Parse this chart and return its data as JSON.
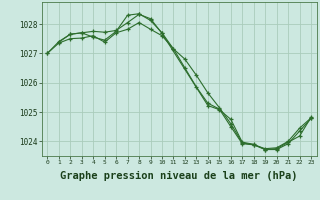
{
  "background_color": "#cce8e0",
  "grid_color": "#aaccbb",
  "line_color": "#2d6e2d",
  "marker_color": "#2d6e2d",
  "xlabel": "Graphe pression niveau de la mer (hPa)",
  "xlabel_fontsize": 7.5,
  "xlim": [
    -0.5,
    23.5
  ],
  "ylim": [
    1023.5,
    1028.75
  ],
  "yticks": [
    1024,
    1025,
    1026,
    1027,
    1028
  ],
  "xticks": [
    0,
    1,
    2,
    3,
    4,
    5,
    6,
    7,
    8,
    9,
    10,
    11,
    12,
    13,
    14,
    15,
    16,
    17,
    18,
    19,
    20,
    21,
    22,
    23
  ],
  "series": [
    {
      "x": [
        0,
        1,
        2,
        3,
        4,
        5,
        6,
        7,
        8,
        9,
        10,
        11,
        12,
        13,
        14,
        15,
        16,
        17,
        18,
        19,
        20,
        21,
        22,
        23
      ],
      "y": [
        1027.0,
        1027.4,
        1027.65,
        1027.7,
        1027.55,
        1027.45,
        1027.75,
        1028.3,
        1028.35,
        1028.12,
        1027.7,
        1027.15,
        1026.5,
        1025.85,
        1025.3,
        1025.1,
        1024.5,
        1023.92,
        1023.88,
        1023.75,
        1023.78,
        1024.0,
        1024.45,
        1024.8
      ]
    },
    {
      "x": [
        0,
        1,
        2,
        3,
        4,
        5,
        6,
        7,
        8,
        9,
        10,
        11,
        12,
        13,
        14,
        15,
        16,
        17,
        18,
        19,
        20,
        21,
        22,
        23
      ],
      "y": [
        1027.0,
        1027.35,
        1027.5,
        1027.52,
        1027.6,
        1027.38,
        1027.7,
        1027.82,
        1028.05,
        1027.82,
        1027.6,
        1027.15,
        1026.8,
        1026.25,
        1025.65,
        1025.15,
        1024.6,
        1023.95,
        1023.88,
        1023.72,
        1023.72,
        1023.92,
        1024.35,
        1024.78
      ]
    },
    {
      "x": [
        1,
        2,
        3,
        4,
        5,
        6,
        7,
        8,
        9,
        10,
        14,
        15,
        16,
        17,
        18,
        19,
        20,
        21,
        22,
        23
      ],
      "y": [
        1027.38,
        1027.65,
        1027.7,
        1027.75,
        1027.72,
        1027.78,
        1028.05,
        1028.33,
        1028.18,
        1027.68,
        1025.22,
        1025.08,
        1024.75,
        1023.97,
        1023.9,
        1023.72,
        1023.75,
        1023.97,
        1024.18,
        1024.82
      ]
    }
  ]
}
